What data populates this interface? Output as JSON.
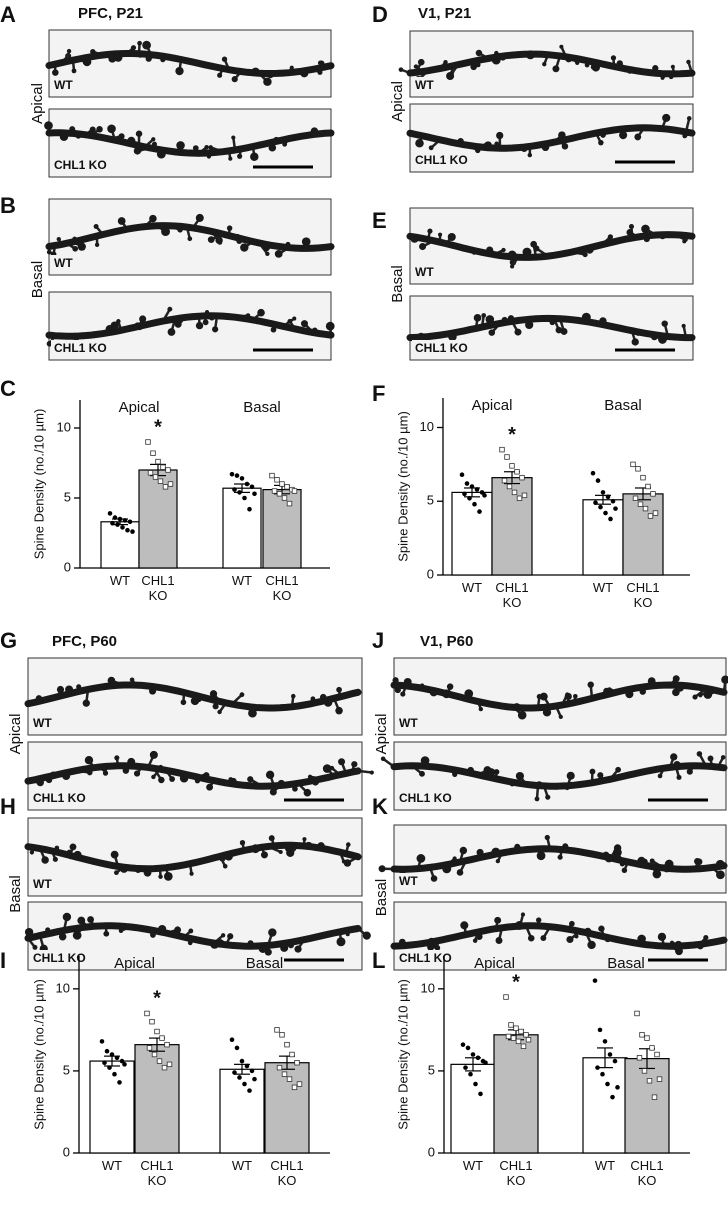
{
  "micrographs": [
    {
      "letter": "A",
      "title": "PFC, P21",
      "region": "Apical",
      "labels": [
        "WT",
        "CHL1 KO"
      ]
    },
    {
      "letter": "D",
      "title": "V1, P21",
      "region": "Apical",
      "labels": [
        "WT",
        "CHL1 KO"
      ]
    },
    {
      "letter": "B",
      "region": "Basal",
      "labels": [
        "WT",
        "CHL1 KO"
      ]
    },
    {
      "letter": "E",
      "region": "Basal",
      "labels": [
        "WT",
        "CHL1 KO"
      ]
    },
    {
      "letter": "G",
      "title": "PFC, P60",
      "region": "Apical",
      "labels": [
        "WT",
        "CHL1 KO"
      ]
    },
    {
      "letter": "J",
      "title": "V1, P60",
      "region": "Apical",
      "labels": [
        "WT",
        "CHL1 KO"
      ]
    },
    {
      "letter": "H",
      "region": "Basal",
      "labels": [
        "WT",
        "CHL1 KO"
      ]
    },
    {
      "letter": "K",
      "region": "Basal",
      "labels": [
        "WT",
        "CHL1 KO"
      ]
    }
  ],
  "chart_data": [
    {
      "type": "bar",
      "letter": "C",
      "ylabel": "Spine Density (no./10 µm)",
      "categories": [
        "WT",
        "CHL1 KO"
      ],
      "colors": [
        "#ffffff",
        "#bdbdbd"
      ],
      "markers": [
        "circle",
        "square"
      ],
      "ylim": [
        0,
        12
      ],
      "yticks": [
        0,
        5,
        10
      ],
      "series": [
        {
          "name": "Apical",
          "values": [
            3.3,
            7.0
          ],
          "errors": [
            0.2,
            0.4
          ],
          "stars": [
            null,
            "*"
          ],
          "points": [
            [
              3.9,
              3.6,
              3.5,
              3.4,
              3.3,
              3.2,
              3.1,
              2.9,
              2.7,
              2.6
            ],
            [
              9.0,
              8.2,
              7.6,
              7.2,
              7.0,
              6.8,
              6.5,
              6.2,
              5.8,
              6.0
            ]
          ]
        },
        {
          "name": "Basal",
          "values": [
            5.7,
            5.6
          ],
          "errors": [
            0.3,
            0.3
          ],
          "points": [
            [
              6.7,
              6.6,
              6.4,
              6.0,
              5.8,
              5.6,
              5.4,
              5.0,
              4.2,
              5.3
            ],
            [
              6.6,
              6.3,
              6.0,
              5.8,
              5.6,
              5.5,
              5.3,
              5.0,
              4.6,
              5.5
            ]
          ]
        }
      ]
    },
    {
      "type": "bar",
      "letter": "F",
      "ylabel": "Spine Density (no./10 µm)",
      "categories": [
        "WT",
        "CHL1 KO"
      ],
      "colors": [
        "#ffffff",
        "#bdbdbd"
      ],
      "markers": [
        "circle",
        "square"
      ],
      "ylim": [
        0,
        12
      ],
      "yticks": [
        0,
        5,
        10
      ],
      "series": [
        {
          "name": "Apical",
          "values": [
            5.6,
            6.6
          ],
          "errors": [
            0.3,
            0.4
          ],
          "stars": [
            null,
            "*"
          ],
          "points": [
            [
              6.8,
              6.2,
              6.0,
              5.8,
              5.6,
              5.5,
              5.2,
              4.8,
              4.3,
              5.4
            ],
            [
              8.5,
              8.0,
              7.4,
              7.0,
              6.6,
              6.4,
              6.0,
              5.6,
              5.2,
              5.4
            ]
          ]
        },
        {
          "name": "Basal",
          "values": [
            5.1,
            5.5
          ],
          "errors": [
            0.3,
            0.4
          ],
          "points": [
            [
              6.9,
              6.4,
              5.6,
              5.3,
              5.0,
              4.9,
              4.6,
              4.2,
              3.8,
              4.5
            ],
            [
              7.5,
              7.2,
              6.6,
              6.0,
              5.5,
              5.2,
              4.8,
              4.5,
              4.0,
              4.2
            ]
          ]
        }
      ]
    },
    {
      "type": "bar",
      "letter": "I",
      "ylabel": "Spine Density (no./10 µm)",
      "categories": [
        "WT",
        "CHL1 KO"
      ],
      "colors": [
        "#ffffff",
        "#bdbdbd"
      ],
      "markers": [
        "circle",
        "square"
      ],
      "ylim": [
        0,
        12
      ],
      "yticks": [
        0,
        5,
        10
      ],
      "series": [
        {
          "name": "Apical",
          "values": [
            5.6,
            6.6
          ],
          "errors": [
            0.3,
            0.4
          ],
          "stars": [
            null,
            "*"
          ],
          "points": [
            [
              6.8,
              6.2,
              6.0,
              5.8,
              5.6,
              5.5,
              5.2,
              4.8,
              4.3,
              5.4
            ],
            [
              8.5,
              8.0,
              7.4,
              7.0,
              6.6,
              6.4,
              6.0,
              5.6,
              5.2,
              5.4
            ]
          ]
        },
        {
          "name": "Basal",
          "values": [
            5.1,
            5.5
          ],
          "errors": [
            0.3,
            0.4
          ],
          "points": [
            [
              6.9,
              6.4,
              5.6,
              5.3,
              5.0,
              4.9,
              4.6,
              4.2,
              3.8,
              4.5
            ],
            [
              7.5,
              7.2,
              6.6,
              6.0,
              5.5,
              5.2,
              4.8,
              4.5,
              4.0,
              4.2
            ]
          ]
        }
      ]
    },
    {
      "type": "bar",
      "letter": "L",
      "ylabel": "Spine Density (no./10 µm)",
      "categories": [
        "WT",
        "CHL1 KO"
      ],
      "colors": [
        "#ffffff",
        "#bdbdbd"
      ],
      "markers": [
        "circle",
        "square"
      ],
      "ylim": [
        0,
        12
      ],
      "yticks": [
        0,
        5,
        10
      ],
      "series": [
        {
          "name": "Apical",
          "values": [
            5.4,
            7.2
          ],
          "errors": [
            0.4,
            0.3
          ],
          "stars": [
            null,
            "*"
          ],
          "points": [
            [
              6.6,
              6.4,
              6.0,
              5.8,
              5.6,
              5.2,
              4.8,
              4.2,
              3.6,
              5.5
            ],
            [
              9.5,
              7.8,
              7.6,
              7.4,
              7.2,
              7.1,
              7.0,
              6.8,
              6.5,
              6.9
            ]
          ]
        },
        {
          "name": "Basal",
          "values": [
            5.8,
            5.75
          ],
          "errors": [
            0.6,
            0.6
          ],
          "points": [
            [
              10.5,
              7.5,
              6.8,
              6.0,
              5.6,
              5.2,
              4.8,
              4.2,
              3.4,
              4.0
            ],
            [
              8.5,
              7.2,
              7.0,
              6.4,
              6.0,
              5.8,
              5.0,
              4.4,
              3.4,
              4.5
            ]
          ]
        }
      ]
    }
  ]
}
